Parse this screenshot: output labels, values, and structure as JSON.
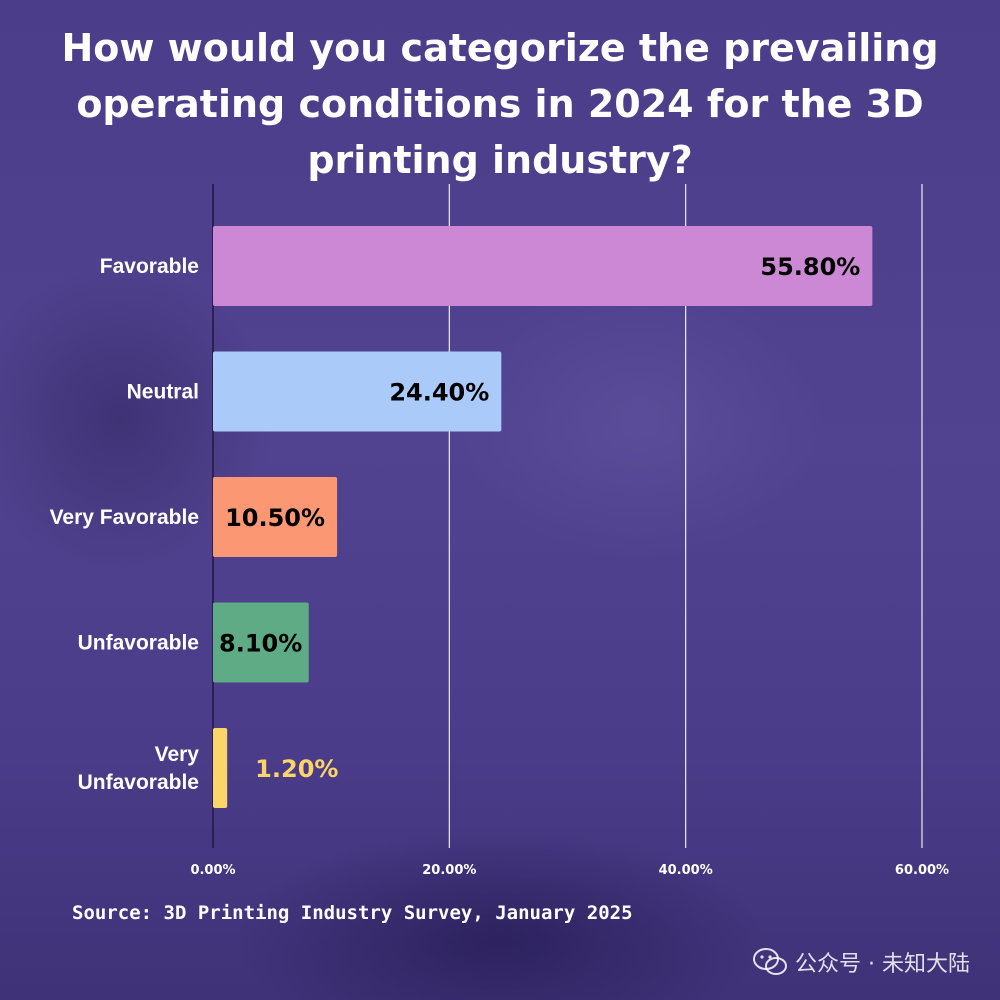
{
  "chart_data": {
    "type": "bar",
    "orientation": "horizontal",
    "title": "How would you categorize the prevailing operating conditions in 2024 for the 3D printing industry?",
    "categories": [
      [
        "Favorable"
      ],
      [
        "Neutral"
      ],
      [
        "Very Favorable"
      ],
      [
        "Unfavorable"
      ],
      [
        "Very",
        "Unfavorable"
      ]
    ],
    "values": [
      55.8,
      24.4,
      10.5,
      8.1,
      1.2
    ],
    "value_labels": [
      "55.80%",
      "24.40%",
      "10.50%",
      "8.10%",
      "1.20%"
    ],
    "colors": [
      "#cc88d4",
      "#aacbfa",
      "#fb9873",
      "#5eab85",
      "#fbd56a"
    ],
    "label_colors": [
      "#000000",
      "#000000",
      "#000000",
      "#000000",
      "#fbd56a"
    ],
    "xlim": [
      0,
      60
    ],
    "x_ticks": [
      0,
      20,
      40,
      60
    ],
    "x_tick_labels": [
      "0.00%",
      "20.00%",
      "40.00%",
      "60.00%"
    ],
    "grid": true,
    "legend": "none"
  },
  "source": "Source: 3D Printing Industry Survey, January 2025",
  "watermark": {
    "icon": "wechat-icon",
    "text": "公众号 · 未知大陆"
  }
}
